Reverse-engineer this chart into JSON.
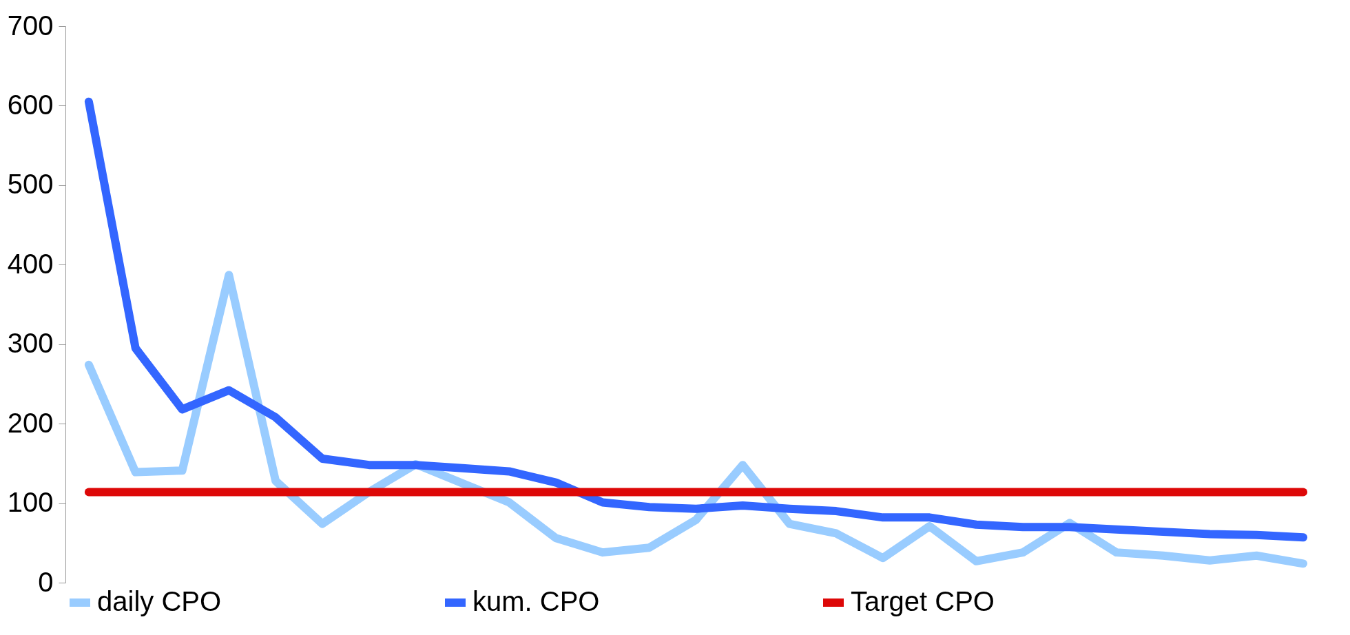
{
  "chart_data": {
    "type": "line",
    "categories": [
      null,
      null,
      null,
      null,
      null,
      null,
      null,
      null,
      null,
      null,
      null,
      null,
      null,
      null,
      null,
      null,
      null,
      null,
      null,
      null,
      null,
      null,
      null,
      null,
      null,
      null,
      null
    ],
    "series": [
      {
        "name": "daily CPO",
        "color": "#99ccff",
        "values": [
          274,
          139,
          141,
          387,
          128,
          74,
          114,
          149,
          125,
          101,
          56,
          38,
          44,
          79,
          148,
          74,
          62,
          31,
          71,
          27,
          38,
          75,
          38,
          34,
          28,
          34,
          24
        ]
      },
      {
        "name": "kum. CPO",
        "color": "#3366ff",
        "values": [
          605,
          295,
          218,
          242,
          208,
          156,
          148,
          148,
          144,
          140,
          126,
          101,
          95,
          93,
          97,
          93,
          90,
          82,
          82,
          73,
          70,
          70,
          67,
          64,
          61,
          60,
          57
        ]
      },
      {
        "name": "Target CPO",
        "color": "#dd0808",
        "values": [
          114,
          114,
          114,
          114,
          114,
          114,
          114,
          114,
          114,
          114,
          114,
          114,
          114,
          114,
          114,
          114,
          114,
          114,
          114,
          114,
          114,
          114,
          114,
          114,
          114,
          114,
          114
        ]
      }
    ],
    "ylim": [
      0,
      700
    ],
    "yticks": [
      0,
      100,
      200,
      300,
      400,
      500,
      600,
      700
    ],
    "legend": "bottom",
    "tick_labels": "y",
    "grid": false,
    "line_style": "solid"
  }
}
